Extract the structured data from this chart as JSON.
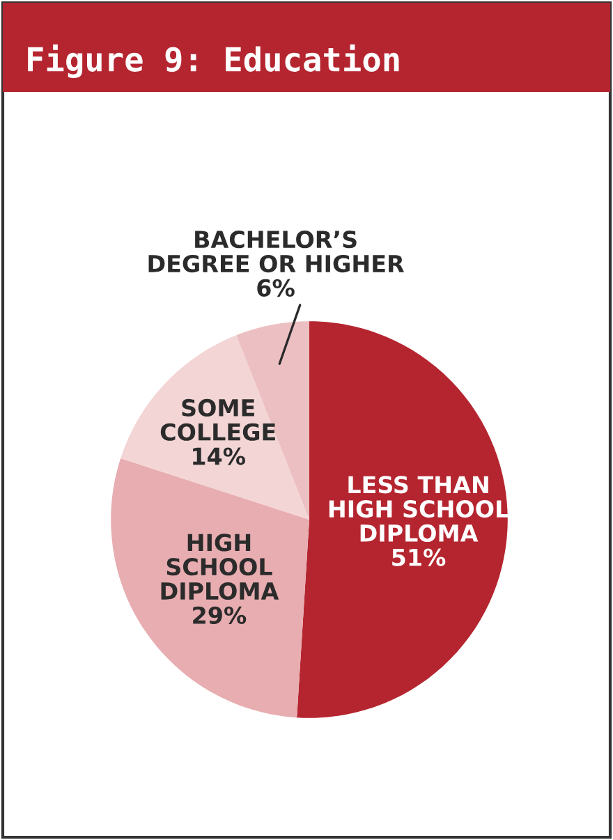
{
  "chart_data": {
    "type": "pie",
    "title": "Figure 9: Education",
    "categories": [
      "LESS THAN\nHIGH SCHOOL\nDIPLOMA",
      "HIGH\nSCHOOL\nDIPLOMA",
      "SOME\nCOLLEGE",
      "BACHELOR’S\nDEGREE OR HIGHER"
    ],
    "values": [
      51,
      29,
      14,
      6
    ],
    "value_labels": [
      "51%",
      "29%",
      "14%",
      "6%"
    ],
    "colors": [
      "#b5252f",
      "#e8adb0",
      "#f3d5d6",
      "#ecc0c2"
    ],
    "legend": false
  }
}
